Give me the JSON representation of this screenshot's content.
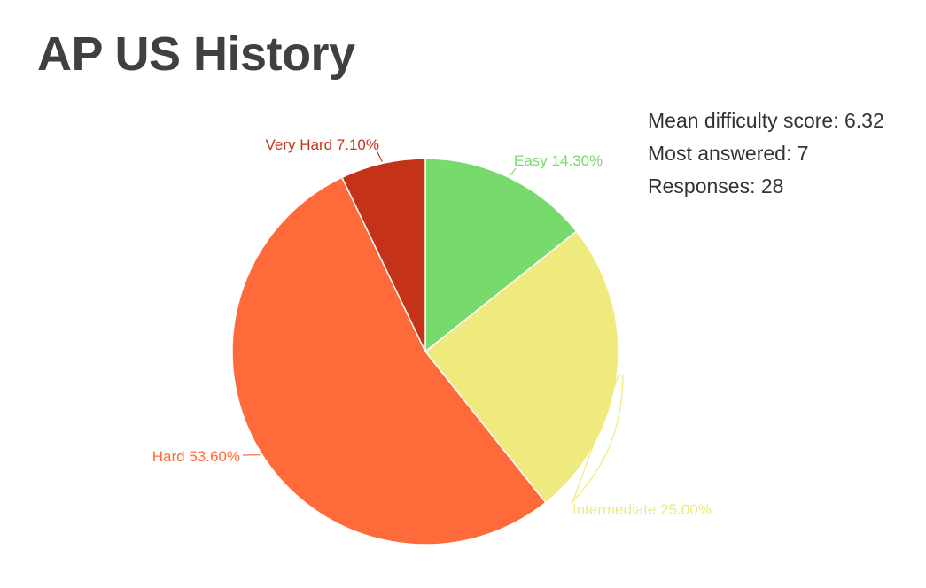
{
  "title": "AP US History",
  "stats": {
    "mean_difficulty": "Mean difficulty score: 6.32",
    "most_answered": "Most answered: 7",
    "responses": "Responses: 28"
  },
  "chart_data": {
    "type": "pie",
    "title": "AP US History",
    "start_angle_deg": 0,
    "direction": "clockwise",
    "slices": [
      {
        "label": "Easy 14.30%",
        "name": "Easy",
        "value": 14.3,
        "color": "#76da6c"
      },
      {
        "label": "Intermediate 25.00%",
        "name": "Intermediate",
        "value": 25.0,
        "color": "#eeea7e"
      },
      {
        "label": "Hard 53.60%",
        "name": "Hard",
        "value": 53.6,
        "color": "#ff6a3a"
      },
      {
        "label": "Very Hard 7.10%",
        "name": "Very Hard",
        "value": 7.1,
        "color": "#c43318"
      }
    ]
  }
}
